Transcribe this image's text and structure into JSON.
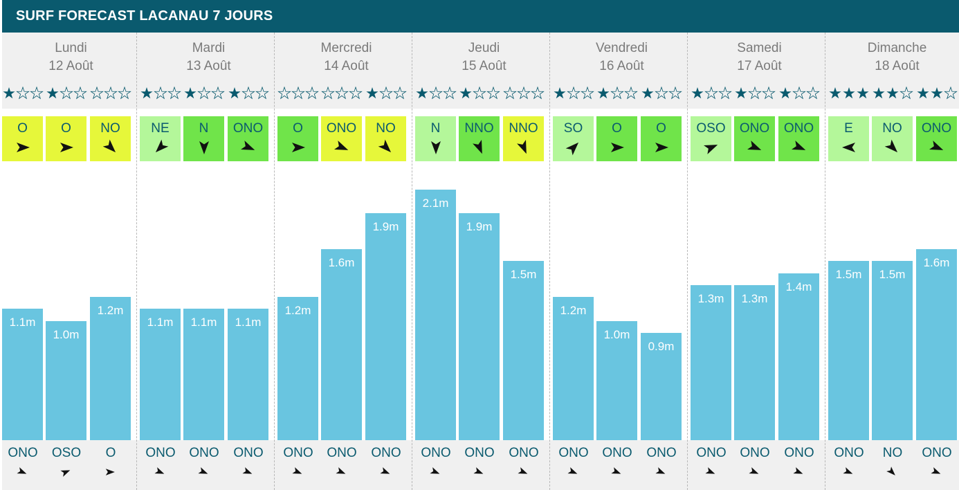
{
  "title": "SURF FORECAST LACANAU 7 JOURS",
  "colors": {
    "header": "#0a5a6e",
    "bar": "#69c5e0",
    "wind_offshore": "#70e44a",
    "wind_cross": "#b4f79a",
    "wind_onshore": "#e6f73a"
  },
  "chart_data": {
    "type": "bar",
    "unit": "m",
    "ylim": [
      0,
      2.1
    ],
    "days": [
      {
        "name": "Lundi",
        "date": "12 Août",
        "stars": [
          [
            1,
            3
          ],
          [
            1,
            3
          ],
          [
            0,
            3
          ]
        ],
        "wind": [
          {
            "dir": "O",
            "deg": 270,
            "rating": "onshore"
          },
          {
            "dir": "O",
            "deg": 270,
            "rating": "onshore"
          },
          {
            "dir": "NO",
            "deg": 315,
            "rating": "onshore"
          }
        ],
        "height_labels": [
          "1.1m",
          "1.0m",
          "1.2m"
        ],
        "heights": [
          1.1,
          1.0,
          1.2
        ],
        "swell": [
          {
            "dir": "ONO",
            "deg": 292.5
          },
          {
            "dir": "OSO",
            "deg": 247.5
          },
          {
            "dir": "O",
            "deg": 270
          }
        ]
      },
      {
        "name": "Mardi",
        "date": "13 Août",
        "stars": [
          [
            1,
            3
          ],
          [
            1,
            3
          ],
          [
            1,
            3
          ]
        ],
        "wind": [
          {
            "dir": "NE",
            "deg": 45,
            "rating": "cross"
          },
          {
            "dir": "N",
            "deg": 0,
            "rating": "offshore"
          },
          {
            "dir": "ONO",
            "deg": 292.5,
            "rating": "offshore"
          }
        ],
        "height_labels": [
          "1.1m",
          "1.1m",
          "1.1m"
        ],
        "heights": [
          1.1,
          1.1,
          1.1
        ],
        "swell": [
          {
            "dir": "ONO",
            "deg": 292.5
          },
          {
            "dir": "ONO",
            "deg": 292.5
          },
          {
            "dir": "ONO",
            "deg": 292.5
          }
        ]
      },
      {
        "name": "Mercredi",
        "date": "14 Août",
        "stars": [
          [
            0,
            3
          ],
          [
            0,
            3
          ],
          [
            1,
            3
          ]
        ],
        "wind": [
          {
            "dir": "O",
            "deg": 270,
            "rating": "offshore"
          },
          {
            "dir": "ONO",
            "deg": 292.5,
            "rating": "onshore"
          },
          {
            "dir": "NO",
            "deg": 315,
            "rating": "onshore"
          }
        ],
        "height_labels": [
          "1.2m",
          "1.6m",
          "1.9m"
        ],
        "heights": [
          1.2,
          1.6,
          1.9
        ],
        "swell": [
          {
            "dir": "ONO",
            "deg": 292.5
          },
          {
            "dir": "ONO",
            "deg": 292.5
          },
          {
            "dir": "ONO",
            "deg": 292.5
          }
        ]
      },
      {
        "name": "Jeudi",
        "date": "15 Août",
        "stars": [
          [
            1,
            3
          ],
          [
            1,
            3
          ],
          [
            0,
            3
          ]
        ],
        "wind": [
          {
            "dir": "N",
            "deg": 0,
            "rating": "cross"
          },
          {
            "dir": "NNO",
            "deg": 337.5,
            "rating": "offshore"
          },
          {
            "dir": "NNO",
            "deg": 337.5,
            "rating": "onshore"
          }
        ],
        "height_labels": [
          "2.1m",
          "1.9m",
          "1.5m"
        ],
        "heights": [
          2.1,
          1.9,
          1.5
        ],
        "swell": [
          {
            "dir": "ONO",
            "deg": 292.5
          },
          {
            "dir": "ONO",
            "deg": 292.5
          },
          {
            "dir": "ONO",
            "deg": 292.5
          }
        ]
      },
      {
        "name": "Vendredi",
        "date": "16 Août",
        "stars": [
          [
            1,
            3
          ],
          [
            1,
            3
          ],
          [
            1,
            3
          ]
        ],
        "wind": [
          {
            "dir": "SO",
            "deg": 225,
            "rating": "cross"
          },
          {
            "dir": "O",
            "deg": 270,
            "rating": "offshore"
          },
          {
            "dir": "O",
            "deg": 270,
            "rating": "offshore"
          }
        ],
        "height_labels": [
          "1.2m",
          "1.0m",
          "0.9m"
        ],
        "heights": [
          1.2,
          1.0,
          0.9
        ],
        "swell": [
          {
            "dir": "ONO",
            "deg": 292.5
          },
          {
            "dir": "ONO",
            "deg": 292.5
          },
          {
            "dir": "ONO",
            "deg": 292.5
          }
        ]
      },
      {
        "name": "Samedi",
        "date": "17 Août",
        "stars": [
          [
            1,
            3
          ],
          [
            1,
            3
          ],
          [
            1,
            3
          ]
        ],
        "wind": [
          {
            "dir": "OSO",
            "deg": 247.5,
            "rating": "cross"
          },
          {
            "dir": "ONO",
            "deg": 292.5,
            "rating": "offshore"
          },
          {
            "dir": "ONO",
            "deg": 292.5,
            "rating": "offshore"
          }
        ],
        "height_labels": [
          "1.3m",
          "1.3m",
          "1.4m"
        ],
        "heights": [
          1.3,
          1.3,
          1.4
        ],
        "swell": [
          {
            "dir": "ONO",
            "deg": 292.5
          },
          {
            "dir": "ONO",
            "deg": 292.5
          },
          {
            "dir": "ONO",
            "deg": 292.5
          }
        ]
      },
      {
        "name": "Dimanche",
        "date": "18 Août",
        "stars": [
          [
            3,
            3
          ],
          [
            2,
            3
          ],
          [
            2,
            3
          ]
        ],
        "wind": [
          {
            "dir": "E",
            "deg": 90,
            "rating": "cross"
          },
          {
            "dir": "NO",
            "deg": 315,
            "rating": "cross"
          },
          {
            "dir": "ONO",
            "deg": 292.5,
            "rating": "offshore"
          }
        ],
        "height_labels": [
          "1.5m",
          "1.5m",
          "1.6m"
        ],
        "heights": [
          1.5,
          1.5,
          1.6
        ],
        "swell": [
          {
            "dir": "ONO",
            "deg": 292.5
          },
          {
            "dir": "NO",
            "deg": 315
          },
          {
            "dir": "ONO",
            "deg": 292.5
          }
        ]
      }
    ]
  }
}
